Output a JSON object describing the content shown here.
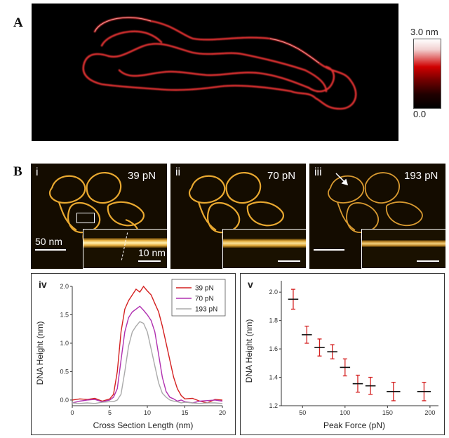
{
  "panel_a": {
    "letter": "A",
    "colorbar": {
      "max_label": "3.0 nm",
      "min_label": "0.0"
    }
  },
  "panel_b": {
    "letter": "B",
    "images": [
      {
        "label": "i",
        "force": "39 pN",
        "scale_main": "50 nm",
        "scale_inset": "10 nm"
      },
      {
        "label": "ii",
        "force": "70 pN"
      },
      {
        "label": "iii",
        "force": "193 pN"
      }
    ]
  },
  "chart_data": [
    {
      "type": "line",
      "panel_label": "iv",
      "xlabel": "Cross Section Length (nm)",
      "ylabel": "DNA Height (nm)",
      "xlim": [
        0,
        20
      ],
      "ylim": [
        -0.1,
        2.0
      ],
      "xticks": [
        "0",
        "5",
        "10",
        "15",
        "20"
      ],
      "yticks": [
        "0.0",
        "0.5",
        "1.0",
        "1.5",
        "2.0"
      ],
      "legend_position": "top-right",
      "series": [
        {
          "name": "39 pN",
          "color": "#d42020",
          "x": [
            0,
            1,
            2,
            3,
            4,
            5,
            5.5,
            6,
            6.5,
            7,
            7.5,
            8,
            8.5,
            9,
            9.5,
            10,
            10.5,
            11,
            11.5,
            12,
            12.5,
            13,
            13.5,
            14,
            14.5,
            15,
            16,
            17,
            18,
            19,
            20
          ],
          "y": [
            0,
            0.02,
            0.01,
            0.03,
            -0.02,
            0.02,
            0.1,
            0.5,
            1.2,
            1.6,
            1.75,
            1.85,
            1.95,
            1.9,
            2.0,
            1.92,
            1.85,
            1.7,
            1.55,
            1.3,
            1.0,
            0.7,
            0.4,
            0.2,
            0.08,
            0.02,
            0.03,
            -0.02,
            -0.05,
            0.01,
            0
          ]
        },
        {
          "name": "70 pN",
          "color": "#b030b0",
          "x": [
            0,
            1,
            2,
            3,
            4,
            5,
            5.5,
            6,
            6.5,
            7,
            7.5,
            8,
            8.5,
            9,
            9.5,
            10,
            10.5,
            11,
            11.5,
            12,
            12.5,
            13,
            13.5,
            14,
            14.5,
            15,
            16,
            17,
            18,
            19,
            20
          ],
          "y": [
            -0.05,
            -0.02,
            0,
            0.01,
            -0.03,
            0,
            0.05,
            0.2,
            0.7,
            1.2,
            1.45,
            1.55,
            1.6,
            1.65,
            1.58,
            1.5,
            1.4,
            1.2,
            0.8,
            0.4,
            0.15,
            0.05,
            0.02,
            -0.02,
            0,
            -0.03,
            -0.05,
            -0.02,
            -0.01,
            0,
            -0.02
          ]
        },
        {
          "name": "193 pN",
          "color": "#aaaaaa",
          "x": [
            0,
            1,
            2,
            3,
            4,
            5,
            5.5,
            6,
            6.5,
            7,
            7.5,
            8,
            8.5,
            9,
            9.5,
            10,
            10.5,
            11,
            11.5,
            12,
            12.5,
            13,
            13.5,
            14,
            14.5,
            15,
            16,
            17,
            18,
            19,
            20
          ],
          "y": [
            -0.05,
            -0.06,
            -0.05,
            -0.06,
            -0.04,
            -0.03,
            -0.03,
            0.0,
            0.1,
            0.5,
            0.95,
            1.2,
            1.3,
            1.38,
            1.35,
            1.2,
            0.9,
            0.6,
            0.3,
            0.12,
            0.05,
            0.0,
            -0.02,
            -0.03,
            -0.05,
            -0.04,
            -0.05,
            -0.06,
            -0.05,
            -0.05,
            -0.06
          ]
        }
      ]
    },
    {
      "type": "scatter",
      "panel_label": "v",
      "xlabel": "Peak Force (pN)",
      "ylabel": "DNA Height (nm)",
      "xlim": [
        25,
        210
      ],
      "ylim": [
        1.2,
        2.08
      ],
      "xticks": [
        "50",
        "100",
        "150",
        "200"
      ],
      "yticks": [
        "1.2",
        "1.4",
        "1.6",
        "1.8",
        "2.0"
      ],
      "error_bar_color": "#d42020",
      "series": [
        {
          "x": [
            39,
            55,
            70,
            85,
            100,
            115,
            130,
            157,
            193
          ],
          "y": [
            1.95,
            1.7,
            1.61,
            1.58,
            1.47,
            1.355,
            1.34,
            1.3,
            1.3
          ],
          "yerr": [
            0.07,
            0.06,
            0.06,
            0.05,
            0.06,
            0.06,
            0.06,
            0.065,
            0.065
          ],
          "xerr": [
            6,
            6,
            6,
            6,
            6,
            6,
            6,
            8,
            8
          ]
        }
      ]
    }
  ]
}
